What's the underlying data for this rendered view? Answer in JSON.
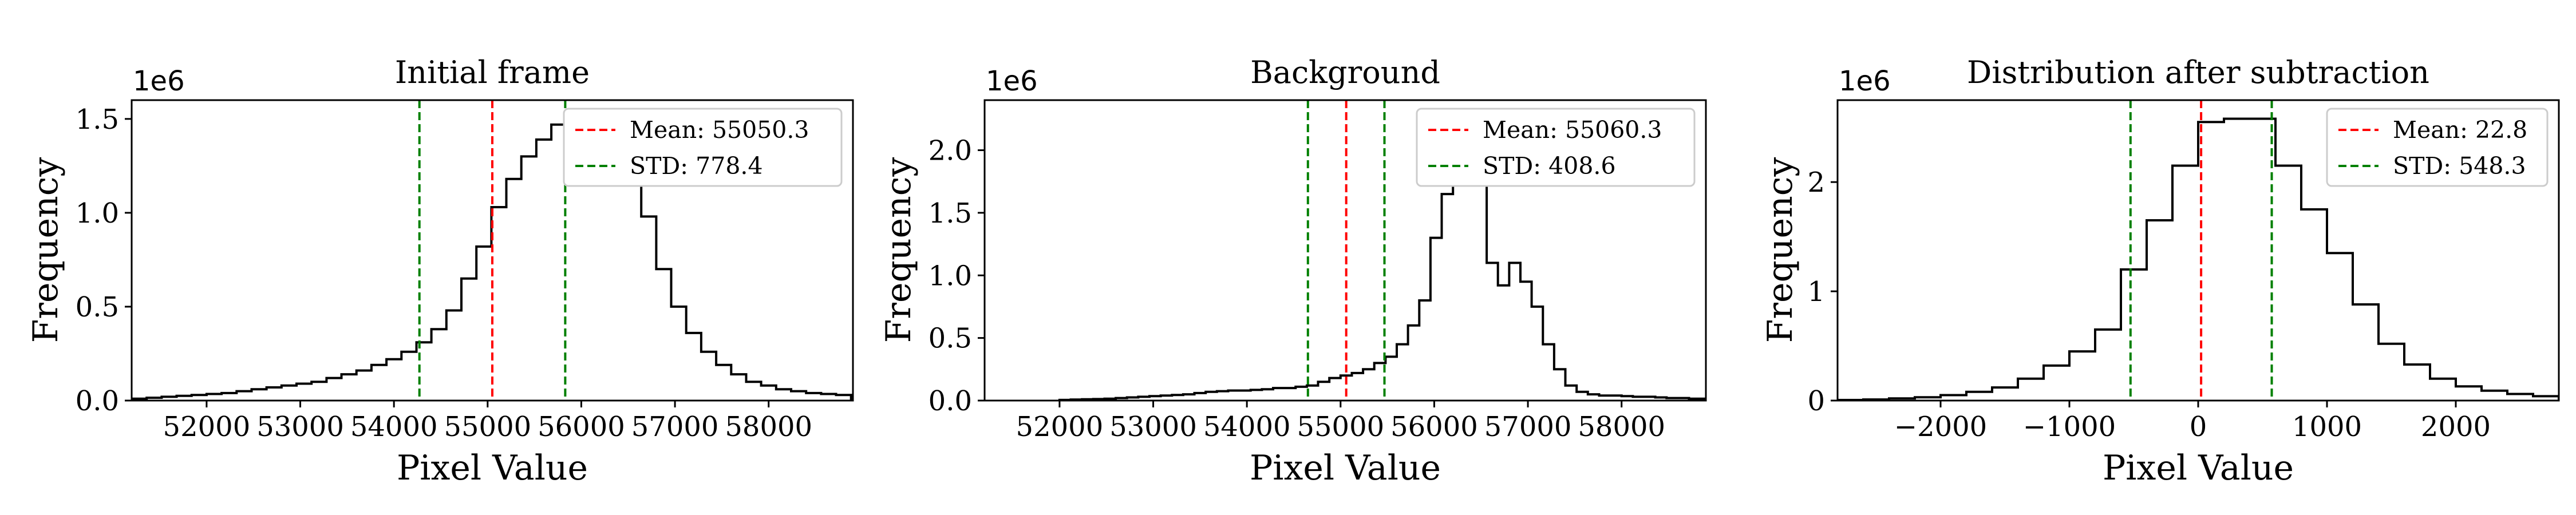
{
  "figure": {
    "background": "#ffffff"
  },
  "chart_data": [
    {
      "type": "histogram",
      "title": "Initial frame",
      "xlabel": "Pixel Value",
      "ylabel": "Frequency",
      "y_scale_label": "1e6",
      "xlim": [
        51200,
        58900
      ],
      "ylim": [
        0,
        1.6
      ],
      "xticks": [
        52000,
        53000,
        54000,
        55000,
        56000,
        57000,
        58000
      ],
      "xtick_labels": [
        "52000",
        "53000",
        "54000",
        "55000",
        "56000",
        "57000",
        "58000"
      ],
      "yticks": [
        0,
        0.5,
        1.0,
        1.5
      ],
      "ytick_labels": [
        "0.0",
        "0.5",
        "1.0",
        "1.5"
      ],
      "bin_start": 51200,
      "bin_width": 160,
      "values": [
        0.01,
        0.015,
        0.02,
        0.025,
        0.03,
        0.035,
        0.04,
        0.05,
        0.06,
        0.07,
        0.08,
        0.09,
        0.1,
        0.12,
        0.14,
        0.16,
        0.19,
        0.22,
        0.26,
        0.31,
        0.38,
        0.48,
        0.65,
        0.82,
        1.03,
        1.18,
        1.3,
        1.39,
        1.47,
        1.52,
        1.5,
        1.44,
        1.35,
        1.2,
        0.98,
        0.7,
        0.5,
        0.36,
        0.26,
        0.19,
        0.14,
        0.1,
        0.08,
        0.06,
        0.05,
        0.04,
        0.035,
        0.03
      ],
      "lines": [
        {
          "label": "Mean: 55050.3",
          "x": 55050.3,
          "color": "#ff0000"
        },
        {
          "label": "STD: 778.4",
          "x_values": [
            54271.9,
            55828.7
          ],
          "color": "#008000"
        }
      ],
      "legend_position": "upper right",
      "grid": false
    },
    {
      "type": "histogram",
      "title": "Background",
      "xlabel": "Pixel Value",
      "ylabel": "Frequency",
      "y_scale_label": "1e6",
      "xlim": [
        51200,
        58900
      ],
      "ylim": [
        0,
        2.4
      ],
      "xticks": [
        52000,
        53000,
        54000,
        55000,
        56000,
        57000,
        58000
      ],
      "xtick_labels": [
        "52000",
        "53000",
        "54000",
        "55000",
        "56000",
        "57000",
        "58000"
      ],
      "yticks": [
        0,
        0.5,
        1.0,
        1.5,
        2.0
      ],
      "ytick_labels": [
        "0.0",
        "0.5",
        "1.0",
        "1.5",
        "2.0"
      ],
      "bin_start": 52000,
      "bin_width": 120,
      "values": [
        0.005,
        0.008,
        0.01,
        0.012,
        0.015,
        0.02,
        0.025,
        0.03,
        0.035,
        0.04,
        0.045,
        0.05,
        0.06,
        0.07,
        0.075,
        0.08,
        0.08,
        0.085,
        0.09,
        0.1,
        0.1,
        0.11,
        0.12,
        0.15,
        0.18,
        0.2,
        0.22,
        0.25,
        0.3,
        0.35,
        0.45,
        0.6,
        0.8,
        1.3,
        1.65,
        2.28,
        2.05,
        1.75,
        1.1,
        0.92,
        1.1,
        0.95,
        0.75,
        0.45,
        0.25,
        0.12,
        0.07,
        0.05,
        0.04,
        0.04,
        0.035,
        0.03,
        0.03,
        0.025,
        0.02,
        0.02,
        0.015,
        0.015,
        0.01,
        0.01,
        0.01,
        0.01,
        0.01,
        0.005
      ],
      "lines": [
        {
          "label": "Mean: 55060.3",
          "x": 55060.3,
          "color": "#ff0000"
        },
        {
          "label": "STD: 408.6",
          "x_values": [
            54651.7,
            55468.9
          ],
          "color": "#008000"
        }
      ],
      "legend_position": "upper right",
      "grid": false
    },
    {
      "type": "histogram",
      "title": "Distribution after subtraction",
      "xlabel": "Pixel Value",
      "ylabel": "Frequency",
      "y_scale_label": "1e6",
      "xlim": [
        -2800,
        2800
      ],
      "ylim": [
        0,
        2.75
      ],
      "xticks": [
        -2000,
        -1000,
        0,
        1000,
        2000
      ],
      "xtick_labels": [
        "−2000",
        "−1000",
        "0",
        "1000",
        "2000"
      ],
      "yticks": [
        0,
        1,
        2
      ],
      "ytick_labels": [
        "0",
        "1",
        "2"
      ],
      "bin_start": -2800,
      "bin_width": 200,
      "values": [
        0.005,
        0.01,
        0.02,
        0.03,
        0.05,
        0.08,
        0.12,
        0.2,
        0.32,
        0.45,
        0.65,
        1.2,
        1.65,
        2.15,
        2.55,
        2.58,
        2.58,
        2.15,
        1.75,
        1.35,
        0.88,
        0.52,
        0.33,
        0.2,
        0.13,
        0.09,
        0.06,
        0.04
      ],
      "lines": [
        {
          "label": "Mean: 22.8",
          "x": 22.8,
          "color": "#ff0000"
        },
        {
          "label": "STD: 548.3",
          "x_values": [
            -525.5,
            571.1
          ],
          "color": "#008000"
        }
      ],
      "legend_position": "upper right",
      "grid": false
    }
  ]
}
